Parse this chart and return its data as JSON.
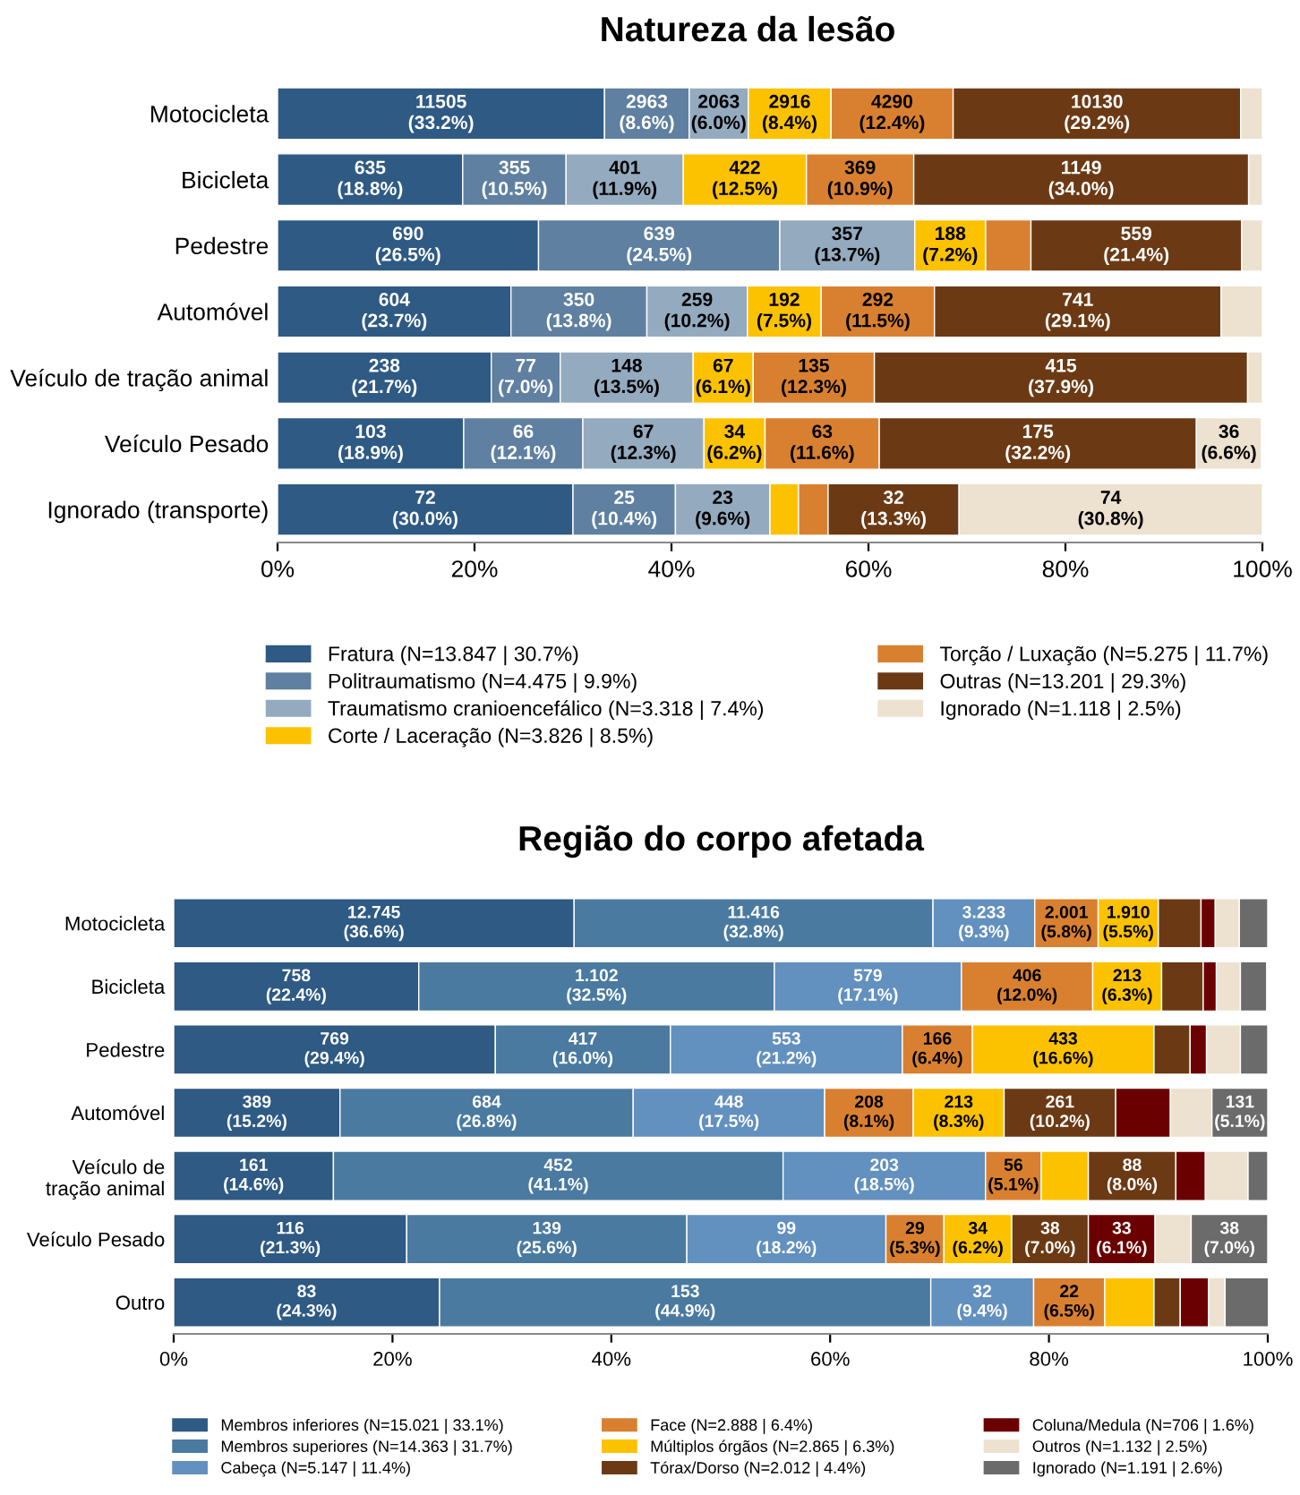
{
  "chart_data": [
    {
      "type": "bar",
      "orientation": "horizontal",
      "stacked": true,
      "title": "Natureza da lesão",
      "legend": "bottom",
      "grid": false,
      "categories": [
        "Motocicleta",
        "Bicicleta",
        "Pedestre",
        "Automóvel",
        "Veículo de tração animal",
        "Veículo Pesado",
        "Ignorado (transporte)"
      ],
      "xlim": [
        0,
        100
      ],
      "xticks": [
        {
          "value": 0,
          "label": "0%"
        },
        {
          "value": 20,
          "label": "20%"
        },
        {
          "value": 40,
          "label": "40%"
        },
        {
          "value": 60,
          "label": "60%"
        },
        {
          "value": 80,
          "label": "80%"
        },
        {
          "value": 100,
          "label": "100%"
        }
      ],
      "series": [
        {
          "name": "Fratura (N=13.847 | 30.7%)",
          "color": "#2e5a84",
          "values": [
            33.2,
            18.8,
            26.5,
            23.7,
            21.7,
            18.9,
            30.0
          ],
          "value_labels": [
            "11505\n(33.2%)",
            "635\n(18.8%)",
            "690\n(26.5%)",
            "604\n(23.7%)",
            "238\n(21.7%)",
            "103\n(18.9%)",
            "72\n(30.0%)"
          ]
        },
        {
          "name": "Politraumatismo (N=4.475 | 9.9%)",
          "color": "#5f80a0",
          "values": [
            8.6,
            10.5,
            24.5,
            13.8,
            7.0,
            12.1,
            10.4
          ],
          "value_labels": [
            "2963\n(8.6%)",
            "355\n(10.5%)",
            "639\n(24.5%)",
            "350\n(13.8%)",
            "77\n(7.0%)",
            "66\n(12.1%)",
            "25\n(10.4%)"
          ]
        },
        {
          "name": "Traumatismo cranioencefálico (N=3.318 | 7.4%)",
          "color": "#94aabf",
          "values": [
            6.0,
            11.9,
            13.7,
            10.2,
            13.5,
            12.3,
            9.6
          ],
          "value_labels": [
            "2063\n(6.0%)",
            "401\n(11.9%)",
            "357\n(13.7%)",
            "259\n(10.2%)",
            "148\n(13.5%)",
            "67\n(12.3%)",
            "23\n(9.6%)"
          ]
        },
        {
          "name": "Corte / Laceração (N=3.826 | 8.5%)",
          "color": "#fcc200",
          "values": [
            8.4,
            12.5,
            7.2,
            7.5,
            6.1,
            6.2,
            2.9
          ],
          "value_labels": [
            "2916\n(8.4%)",
            "422\n(12.5%)",
            "188\n(7.2%)",
            "192\n(7.5%)",
            "67\n(6.1%)",
            "34\n(6.2%)",
            null
          ]
        },
        {
          "name": "Torção / Luxação (N=5.275 | 11.7%)",
          "color": "#d98030",
          "values": [
            12.4,
            10.9,
            4.6,
            11.5,
            12.3,
            11.6,
            3.0
          ],
          "value_labels": [
            "4290\n(12.4%)",
            "369\n(10.9%)",
            null,
            "292\n(11.5%)",
            "135\n(12.3%)",
            "63\n(11.6%)",
            null
          ]
        },
        {
          "name": "Outras (N=13.201 | 29.3%)",
          "color": "#6b3a14",
          "values": [
            29.2,
            34.0,
            21.4,
            29.1,
            37.9,
            32.2,
            13.3
          ],
          "value_labels": [
            "10130\n(29.2%)",
            "1149\n(34.0%)",
            "559\n(21.4%)",
            "741\n(29.1%)",
            "415\n(37.9%)",
            "175\n(32.2%)",
            "32\n(13.3%)"
          ]
        },
        {
          "name": "Ignorado (N=1.118 | 2.5%)",
          "color": "#ede1cf",
          "values": [
            2.2,
            1.4,
            2.1,
            4.2,
            1.5,
            6.6,
            30.8
          ],
          "value_labels": [
            null,
            null,
            null,
            null,
            null,
            "36\n(6.6%)",
            "74\n(30.8%)"
          ]
        }
      ]
    },
    {
      "type": "bar",
      "orientation": "horizontal",
      "stacked": true,
      "title": "Região do corpo afetada",
      "legend": "bottom",
      "grid": false,
      "categories": [
        "Motocicleta",
        "Bicicleta",
        "Pedestre",
        "Automóvel",
        "Veículo de\ntração animal",
        "Veículo Pesado",
        "Outro"
      ],
      "xlim": [
        0,
        100
      ],
      "xticks": [
        {
          "value": 0,
          "label": "0%"
        },
        {
          "value": 20,
          "label": "20%"
        },
        {
          "value": 40,
          "label": "40%"
        },
        {
          "value": 60,
          "label": "60%"
        },
        {
          "value": 80,
          "label": "80%"
        },
        {
          "value": 100,
          "label": "100%"
        }
      ],
      "series": [
        {
          "name": "Membros inferiores (N=15.021 | 33.1%)",
          "color": "#2e5a84",
          "values": [
            36.6,
            22.4,
            29.4,
            15.2,
            14.6,
            21.3,
            24.3
          ],
          "value_labels": [
            "12.745\n(36.6%)",
            "758\n(22.4%)",
            "769\n(29.4%)",
            "389\n(15.2%)",
            "161\n(14.6%)",
            "116\n(21.3%)",
            "83\n(24.3%)"
          ]
        },
        {
          "name": "Membros superiores (N=14.363 | 31.7%)",
          "color": "#4a7aa0",
          "values": [
            32.8,
            32.5,
            16.0,
            26.8,
            41.1,
            25.6,
            44.9
          ],
          "value_labels": [
            "11.416\n(32.8%)",
            "1.102\n(32.5%)",
            "417\n(16.0%)",
            "684\n(26.8%)",
            "452\n(41.1%)",
            "139\n(25.6%)",
            "153\n(44.9%)"
          ]
        },
        {
          "name": "Cabeça (N=5.147 | 11.4%)",
          "color": "#6290bf",
          "values": [
            9.3,
            17.1,
            21.2,
            17.5,
            18.5,
            18.2,
            9.4
          ],
          "value_labels": [
            "3.233\n(9.3%)",
            "579\n(17.1%)",
            "553\n(21.2%)",
            "448\n(17.5%)",
            "203\n(18.5%)",
            "99\n(18.2%)",
            "32\n(9.4%)"
          ]
        },
        {
          "name": "Face (N=2.888 | 6.4%)",
          "color": "#d98030",
          "values": [
            5.8,
            12.0,
            6.4,
            8.1,
            5.1,
            5.3,
            6.5
          ],
          "value_labels": [
            "2.001\n(5.8%)",
            "406\n(12.0%)",
            "166\n(6.4%)",
            "208\n(8.1%)",
            "56\n(5.1%)",
            "29\n(5.3%)",
            "22\n(6.5%)"
          ]
        },
        {
          "name": "Múltiplos órgãos (N=2.865 | 6.3%)",
          "color": "#fcc200",
          "values": [
            5.5,
            6.3,
            16.6,
            8.3,
            4.3,
            6.2,
            4.5
          ],
          "value_labels": [
            "1.910\n(5.5%)",
            "213\n(6.3%)",
            "433\n(16.6%)",
            "213\n(8.3%)",
            null,
            "34\n(6.2%)",
            null
          ]
        },
        {
          "name": "Tórax/Dorso (N=2.012 | 4.4%)",
          "color": "#6b3a14",
          "values": [
            3.9,
            3.8,
            3.3,
            10.2,
            8.0,
            7.0,
            2.4
          ],
          "value_labels": [
            null,
            null,
            null,
            "261\n(10.2%)",
            "88\n(8.0%)",
            "38\n(7.0%)",
            null
          ]
        },
        {
          "name": "Coluna/Medula (N=706 | 1.6%)",
          "color": "#6b0000",
          "values": [
            1.3,
            1.2,
            1.5,
            5.0,
            2.7,
            6.1,
            2.6
          ],
          "value_labels": [
            null,
            null,
            null,
            null,
            null,
            "33\n(6.1%)",
            null
          ]
        },
        {
          "name": "Outros (N=1.132 | 2.5%)",
          "color": "#ede1cf",
          "values": [
            2.2,
            2.2,
            3.1,
            3.8,
            3.9,
            3.3,
            1.5
          ],
          "value_labels": [
            null,
            null,
            null,
            null,
            null,
            null,
            null
          ]
        },
        {
          "name": "Ignorado (N=1.191 | 2.6%)",
          "color": "#6b6b6b",
          "values": [
            2.6,
            2.4,
            2.5,
            5.1,
            1.8,
            7.0,
            4.0
          ],
          "value_labels": [
            null,
            null,
            null,
            "131\n(5.1%)",
            null,
            "38\n(7.0%)",
            null
          ]
        }
      ]
    }
  ]
}
